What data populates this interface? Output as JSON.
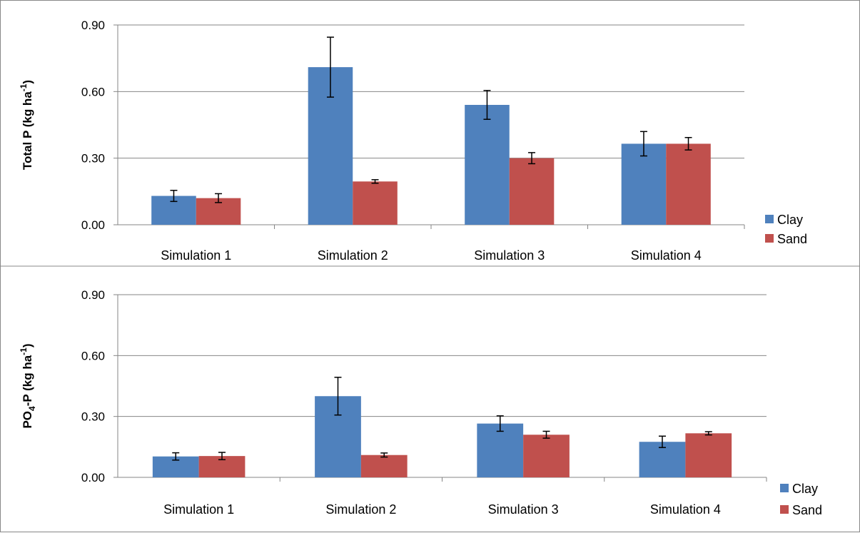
{
  "chart_data": [
    {
      "type": "bar",
      "categories": [
        "Simulation 1",
        "Simulation 2",
        "Simulation 3",
        "Simulation 4"
      ],
      "ylabel": "Total P (kg ha-1)",
      "ylabel_parts": [
        "Total P (kg ha",
        "-1",
        ")"
      ],
      "ylim": [
        0,
        0.9
      ],
      "yticks": [
        "0.00",
        "0.30",
        "0.60",
        "0.90"
      ],
      "grid": true,
      "legend_position": "bottom-right",
      "series": [
        {
          "name": "Clay",
          "color": "#4F81BD",
          "values": [
            0.13,
            0.71,
            0.54,
            0.365
          ],
          "errors": [
            0.025,
            0.135,
            0.065,
            0.055
          ]
        },
        {
          "name": "Sand",
          "color": "#C0504D",
          "values": [
            0.12,
            0.195,
            0.3,
            0.365
          ],
          "errors": [
            0.02,
            0.008,
            0.025,
            0.028
          ]
        }
      ]
    },
    {
      "type": "bar",
      "categories": [
        "Simulation 1",
        "Simulation 2",
        "Simulation 3",
        "Simulation 4"
      ],
      "ylabel": "PO4-P (kg ha-1)",
      "ylabel_parts": [
        "PO",
        "4",
        "-P (kg ha",
        "-1",
        ")"
      ],
      "ylim": [
        0,
        0.9
      ],
      "yticks": [
        "0.00",
        "0.30",
        "0.60",
        "0.90"
      ],
      "grid": true,
      "legend_position": "bottom-right",
      "series": [
        {
          "name": "Clay",
          "color": "#4F81BD",
          "values": [
            0.103,
            0.4,
            0.265,
            0.175
          ],
          "errors": [
            0.018,
            0.093,
            0.038,
            0.028
          ]
        },
        {
          "name": "Sand",
          "color": "#C0504D",
          "values": [
            0.105,
            0.11,
            0.21,
            0.217
          ],
          "errors": [
            0.018,
            0.01,
            0.017,
            0.008
          ]
        }
      ]
    }
  ]
}
